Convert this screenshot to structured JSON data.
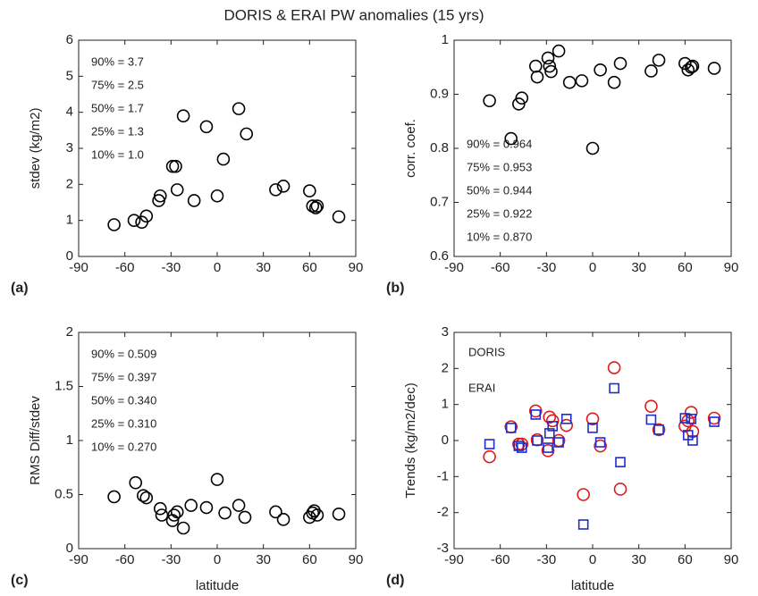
{
  "title": "DORIS & ERAI PW anomalies (15 yrs)",
  "chart_data": [
    {
      "type": "scatter",
      "label": "(a)",
      "ylabel": "stdev (kg/m2)",
      "color": "#000000",
      "marker": "circle",
      "xlim": [
        -90,
        90
      ],
      "xticks": [
        -90,
        -60,
        -30,
        0,
        30,
        60,
        90
      ],
      "ylim": [
        0,
        6
      ],
      "yticks": [
        0,
        1,
        2,
        3,
        4,
        5,
        6
      ],
      "annotations": [
        "90% = 3.7",
        "75% = 2.5",
        "50% = 1.7",
        "25% = 1.3",
        "10% = 1.0"
      ],
      "x": [
        -67,
        -54,
        -49,
        -46,
        -38,
        -37,
        -29,
        -27,
        -26,
        -22,
        -15,
        -7,
        0,
        4,
        14,
        19,
        38,
        43,
        60,
        62,
        64,
        65,
        79
      ],
      "values": [
        0.88,
        1.0,
        0.95,
        1.12,
        1.55,
        1.68,
        2.5,
        2.5,
        1.85,
        3.9,
        1.55,
        3.6,
        1.68,
        2.7,
        4.1,
        3.4,
        1.85,
        1.95,
        1.82,
        1.4,
        1.35,
        1.4,
        1.1
      ]
    },
    {
      "type": "scatter",
      "label": "(b)",
      "ylabel": "corr. coef.",
      "color": "#000000",
      "marker": "circle",
      "xlim": [
        -90,
        90
      ],
      "xticks": [
        -90,
        -60,
        -30,
        0,
        30,
        60,
        90
      ],
      "ylim": [
        0.6,
        1
      ],
      "yticks": [
        0.6,
        0.7,
        0.8,
        0.9,
        1
      ],
      "annotations": [
        "90% = 0.964",
        "75% = 0.953",
        "50% = 0.944",
        "25% = 0.922",
        "10% = 0.870"
      ],
      "x": [
        -67,
        -53,
        -48,
        -46,
        -37,
        -36,
        -29,
        -28,
        -27,
        -22,
        -15,
        -7,
        0,
        5,
        14,
        18,
        38,
        43,
        60,
        62,
        64,
        65,
        79
      ],
      "values": [
        0.888,
        0.818,
        0.882,
        0.893,
        0.952,
        0.932,
        0.967,
        0.952,
        0.942,
        0.98,
        0.922,
        0.925,
        0.8,
        0.945,
        0.922,
        0.957,
        0.943,
        0.963,
        0.957,
        0.945,
        0.95,
        0.952,
        0.948
      ]
    },
    {
      "type": "scatter",
      "label": "(c)",
      "xlabel": "latitude",
      "ylabel": "RMS Diff/stdev",
      "color": "#000000",
      "marker": "circle",
      "xlim": [
        -90,
        90
      ],
      "xticks": [
        -90,
        -60,
        -30,
        0,
        30,
        60,
        90
      ],
      "ylim": [
        0,
        2
      ],
      "yticks": [
        0,
        0.5,
        1,
        1.5,
        2
      ],
      "annotations": [
        "90% = 0.509",
        "75% = 0.397",
        "50% = 0.340",
        "25% = 0.310",
        "10% = 0.270"
      ],
      "x": [
        -67,
        -53,
        -48,
        -46,
        -37,
        -36,
        -29,
        -28,
        -26,
        -22,
        -17,
        -7,
        0,
        5,
        14,
        18,
        38,
        43,
        60,
        62,
        63,
        65,
        79
      ],
      "values": [
        0.48,
        0.61,
        0.49,
        0.47,
        0.37,
        0.31,
        0.26,
        0.31,
        0.34,
        0.19,
        0.4,
        0.38,
        0.64,
        0.33,
        0.4,
        0.29,
        0.34,
        0.27,
        0.29,
        0.33,
        0.35,
        0.31,
        0.32
      ]
    },
    {
      "type": "scatter",
      "label": "(d)",
      "xlabel": "latitude",
      "ylabel": "Trends (kg/m2/dec)",
      "xlim": [
        -90,
        90
      ],
      "xticks": [
        -90,
        -60,
        -30,
        0,
        30,
        60,
        90
      ],
      "ylim": [
        -3,
        3
      ],
      "yticks": [
        -3,
        -2,
        -1,
        0,
        1,
        2,
        3
      ],
      "x": [
        -67,
        -53,
        -48,
        -46,
        -37,
        -36,
        -29,
        -28,
        -26,
        -22,
        -17,
        -6,
        0,
        5,
        14,
        18,
        38,
        43,
        60,
        62,
        64,
        65,
        79
      ],
      "series": [
        {
          "name": "DORIS",
          "color": "#e0191b",
          "marker": "circle",
          "values": [
            -0.45,
            0.38,
            -0.1,
            -0.1,
            0.82,
            0.02,
            -0.28,
            0.65,
            0.55,
            0.0,
            0.42,
            -1.5,
            0.6,
            -0.15,
            2.02,
            -1.35,
            0.95,
            0.3,
            0.4,
            0.55,
            0.78,
            0.25,
            0.62
          ]
        },
        {
          "name": "ERAI",
          "color": "#1f2ccc",
          "marker": "square",
          "values": [
            -0.1,
            0.35,
            -0.15,
            -0.2,
            0.72,
            0.0,
            -0.2,
            0.2,
            0.4,
            -0.05,
            0.6,
            -2.33,
            0.35,
            -0.05,
            1.45,
            -0.6,
            0.58,
            0.3,
            0.62,
            0.15,
            0.6,
            0.0,
            0.52
          ]
        }
      ]
    }
  ]
}
